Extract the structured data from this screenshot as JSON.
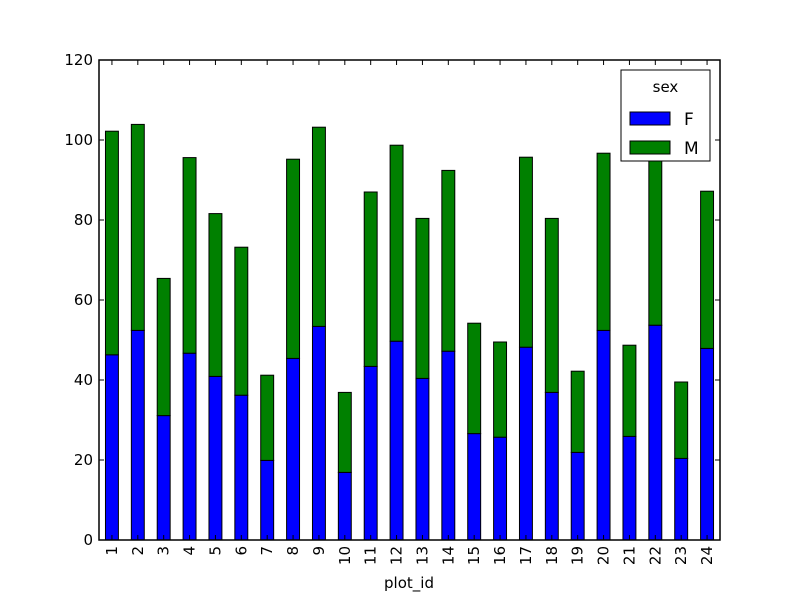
{
  "chart_data": {
    "type": "bar",
    "stacked": true,
    "title": "",
    "xlabel": "plot_id",
    "ylabel": "",
    "ylim": [
      0,
      120
    ],
    "yticks": [
      0,
      20,
      40,
      60,
      80,
      100,
      120
    ],
    "categories": [
      "1",
      "2",
      "3",
      "4",
      "5",
      "6",
      "7",
      "8",
      "9",
      "10",
      "11",
      "12",
      "13",
      "14",
      "15",
      "16",
      "17",
      "18",
      "19",
      "20",
      "21",
      "22",
      "23",
      "24"
    ],
    "series": [
      {
        "name": "F",
        "color": "#0000ff",
        "values": [
          46.3,
          52.4,
          31.1,
          46.7,
          40.9,
          36.2,
          19.9,
          45.4,
          53.4,
          16.9,
          43.4,
          49.7,
          40.4,
          47.2,
          26.6,
          25.7,
          48.2,
          36.9,
          21.9,
          52.4,
          25.9,
          53.7,
          20.4,
          47.9
        ]
      },
      {
        "name": "M",
        "color": "#008000",
        "values": [
          55.9,
          51.5,
          34.3,
          48.9,
          40.7,
          37.0,
          21.3,
          49.8,
          49.8,
          20.0,
          43.6,
          49.0,
          40.0,
          45.2,
          27.6,
          23.8,
          47.5,
          43.5,
          20.3,
          44.3,
          22.8,
          42.3,
          19.1,
          39.3
        ]
      }
    ],
    "legend": {
      "title": "sex",
      "position": "upper right",
      "entries": [
        "F",
        "M"
      ]
    },
    "grid": false
  }
}
